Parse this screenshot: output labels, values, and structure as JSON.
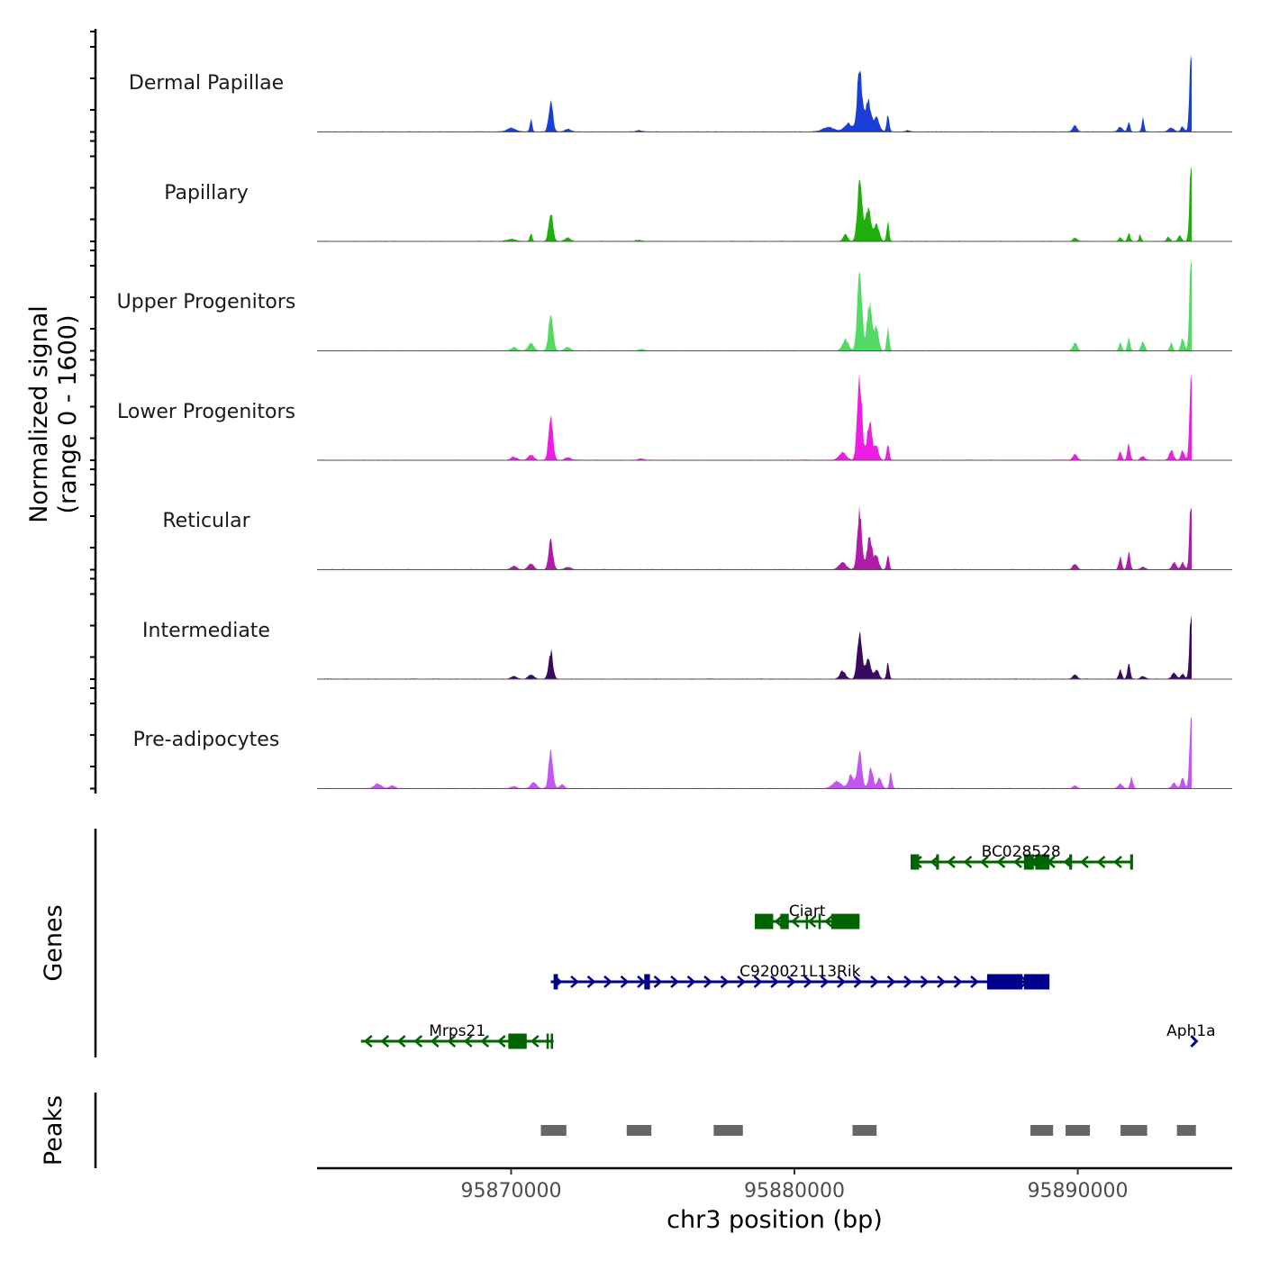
{
  "chart_data": {
    "type": "area",
    "title": "",
    "xlabel": "chr3 position (bp)",
    "ylabel": "Normalized signal\n(range 0 - 1600)",
    "ylabel_lines": [
      "Normalized signal",
      "(range 0 - 1600)"
    ],
    "ylim": [
      0,
      1600
    ],
    "xlim": [
      95863150,
      95895450
    ],
    "x_ticks": [
      95870000,
      95880000,
      95890000
    ],
    "x_tick_labels": [
      "95870000",
      "95880000",
      "95890000"
    ],
    "grid": false,
    "legend": "none",
    "series": [
      {
        "name": "Dermal Papillae",
        "color": "#1a3fd9",
        "peaks": [
          [
            95870000,
            60,
            300
          ],
          [
            95870700,
            200,
            80
          ],
          [
            95871400,
            480,
            150
          ],
          [
            95872000,
            40,
            200
          ],
          [
            95874500,
            20,
            200
          ],
          [
            95881200,
            70,
            400
          ],
          [
            95881900,
            120,
            300
          ],
          [
            95882300,
            1000,
            160
          ],
          [
            95882600,
            500,
            200
          ],
          [
            95882900,
            200,
            200
          ],
          [
            95883300,
            260,
            90
          ],
          [
            95884000,
            20,
            150
          ],
          [
            95889900,
            100,
            150
          ],
          [
            95891500,
            80,
            150
          ],
          [
            95891800,
            150,
            90
          ],
          [
            95892300,
            230,
            80
          ],
          [
            95893300,
            60,
            200
          ],
          [
            95893700,
            80,
            120
          ],
          [
            95894000,
            1200,
            110
          ]
        ]
      },
      {
        "name": "Papillary",
        "color": "#1faf0a",
        "peaks": [
          [
            95870000,
            30,
            300
          ],
          [
            95870700,
            120,
            80
          ],
          [
            95871400,
            450,
            150
          ],
          [
            95872000,
            50,
            200
          ],
          [
            95874500,
            15,
            200
          ],
          [
            95881800,
            110,
            150
          ],
          [
            95882300,
            970,
            160
          ],
          [
            95882600,
            500,
            200
          ],
          [
            95882900,
            250,
            180
          ],
          [
            95883300,
            280,
            90
          ],
          [
            95889900,
            50,
            150
          ],
          [
            95891500,
            60,
            100
          ],
          [
            95891800,
            130,
            90
          ],
          [
            95892200,
            100,
            80
          ],
          [
            95893200,
            60,
            120
          ],
          [
            95893600,
            100,
            120
          ],
          [
            95894000,
            1200,
            110
          ]
        ]
      },
      {
        "name": "Upper Progenitors",
        "color": "#55d966",
        "peaks": [
          [
            95870100,
            50,
            200
          ],
          [
            95870700,
            110,
            200
          ],
          [
            95871400,
            620,
            150
          ],
          [
            95872000,
            50,
            200
          ],
          [
            95874600,
            20,
            200
          ],
          [
            95881800,
            180,
            200
          ],
          [
            95882300,
            1300,
            160
          ],
          [
            95882650,
            700,
            180
          ],
          [
            95882900,
            350,
            150
          ],
          [
            95883300,
            330,
            90
          ],
          [
            95889900,
            120,
            150
          ],
          [
            95891500,
            120,
            100
          ],
          [
            95891800,
            180,
            100
          ],
          [
            95892300,
            140,
            120
          ],
          [
            95893300,
            120,
            100
          ],
          [
            95893700,
            200,
            120
          ],
          [
            95894000,
            1540,
            110
          ]
        ]
      },
      {
        "name": "Lower Progenitors",
        "color": "#ee1de4",
        "peaks": [
          [
            95870100,
            50,
            200
          ],
          [
            95870700,
            80,
            200
          ],
          [
            95871400,
            700,
            150
          ],
          [
            95872000,
            40,
            200
          ],
          [
            95874600,
            20,
            200
          ],
          [
            95881700,
            120,
            250
          ],
          [
            95882300,
            1320,
            160
          ],
          [
            95882650,
            600,
            180
          ],
          [
            95882900,
            200,
            150
          ],
          [
            95883300,
            260,
            90
          ],
          [
            95889900,
            90,
            150
          ],
          [
            95891500,
            130,
            100
          ],
          [
            95891800,
            240,
            100
          ],
          [
            95892300,
            60,
            150
          ],
          [
            95893300,
            150,
            150
          ],
          [
            95893700,
            150,
            120
          ],
          [
            95894000,
            1350,
            110
          ]
        ]
      },
      {
        "name": "Reticular",
        "color": "#b01aa9",
        "peaks": [
          [
            95870100,
            50,
            200
          ],
          [
            95870700,
            90,
            200
          ],
          [
            95871400,
            480,
            150
          ],
          [
            95872000,
            40,
            200
          ],
          [
            95881700,
            110,
            250
          ],
          [
            95882300,
            900,
            160
          ],
          [
            95882650,
            500,
            180
          ],
          [
            95882900,
            200,
            150
          ],
          [
            95883300,
            220,
            90
          ],
          [
            95889900,
            90,
            150
          ],
          [
            95891500,
            190,
            100
          ],
          [
            95891800,
            260,
            100
          ],
          [
            95892300,
            40,
            150
          ],
          [
            95893400,
            110,
            150
          ],
          [
            95893700,
            110,
            120
          ],
          [
            95894000,
            1100,
            110
          ]
        ]
      },
      {
        "name": "Intermediate",
        "color": "#3a0a63",
        "peaks": [
          [
            95870100,
            40,
            200
          ],
          [
            95870700,
            60,
            200
          ],
          [
            95871400,
            420,
            150
          ],
          [
            95881700,
            120,
            200
          ],
          [
            95882300,
            780,
            160
          ],
          [
            95882600,
            350,
            180
          ],
          [
            95882900,
            150,
            150
          ],
          [
            95883300,
            250,
            90
          ],
          [
            95889900,
            70,
            150
          ],
          [
            95891500,
            150,
            100
          ],
          [
            95891800,
            230,
            100
          ],
          [
            95892300,
            40,
            150
          ],
          [
            95893400,
            100,
            150
          ],
          [
            95893700,
            80,
            120
          ],
          [
            95894000,
            1050,
            110
          ]
        ]
      },
      {
        "name": "Pre-adipocytes",
        "color": "#c356f2",
        "peaks": [
          [
            95865300,
            70,
            250
          ],
          [
            95865800,
            40,
            200
          ],
          [
            95870100,
            30,
            200
          ],
          [
            95870800,
            100,
            200
          ],
          [
            95871400,
            580,
            150
          ],
          [
            95871800,
            60,
            150
          ],
          [
            95881500,
            110,
            300
          ],
          [
            95882000,
            200,
            200
          ],
          [
            95882300,
            560,
            160
          ],
          [
            95882700,
            330,
            150
          ],
          [
            95883000,
            180,
            150
          ],
          [
            95883400,
            230,
            90
          ],
          [
            95889900,
            40,
            150
          ],
          [
            95891500,
            70,
            150
          ],
          [
            95891900,
            170,
            100
          ],
          [
            95893400,
            80,
            150
          ],
          [
            95893700,
            180,
            120
          ],
          [
            95894000,
            1040,
            110
          ]
        ]
      }
    ],
    "genes_track": {
      "label": "Genes",
      "genes": [
        {
          "name": "BC028528",
          "strand": "-",
          "color": "#006400",
          "start": 95884100,
          "end": 95891900,
          "row": 0,
          "exons": [
            [
              95884100,
              95884400
            ],
            [
              95885000,
              95885100
            ],
            [
              95888100,
              95888450
            ],
            [
              95888500,
              95889000
            ],
            [
              95889700,
              95889800
            ],
            [
              95891850,
              95891950
            ]
          ]
        },
        {
          "name": "Ciart",
          "strand": "-",
          "color": "#006400",
          "start": 95878600,
          "end": 95882300,
          "row": 1,
          "exons": [
            [
              95878600,
              95879250
            ],
            [
              95879500,
              95879800
            ],
            [
              95880400,
              95880480
            ],
            [
              95880850,
              95880930
            ],
            [
              95881300,
              95882300
            ]
          ]
        },
        {
          "name": "C920021L13Rik",
          "strand": "+",
          "color": "#00008b",
          "start": 95871400,
          "end": 95889000,
          "row": 2,
          "exons": [
            [
              95871500,
              95871650
            ],
            [
              95874700,
              95874900
            ],
            [
              95886800,
              95888050
            ],
            [
              95888100,
              95889000
            ]
          ]
        },
        {
          "name": "Mrps21",
          "strand": "-",
          "color": "#006400",
          "start": 95864700,
          "end": 95871500,
          "row": 3,
          "exons": [
            [
              95869900,
              95870550
            ],
            [
              95871250,
              95871300
            ],
            [
              95871400,
              95871450
            ]
          ]
        },
        {
          "name": "Aph1a",
          "strand": "+",
          "color": "#00008b",
          "start": 95894000,
          "end": 95894200,
          "row": 3,
          "exons": []
        }
      ]
    },
    "peaks_track": {
      "label": "Peaks",
      "color": "#666666",
      "regions": [
        [
          95871050,
          95871950
        ],
        [
          95874080,
          95874950
        ],
        [
          95877150,
          95878180
        ],
        [
          95882050,
          95882900
        ],
        [
          95888330,
          95889130
        ],
        [
          95889570,
          95890430
        ],
        [
          95891510,
          95892450
        ],
        [
          95893500,
          95894170
        ]
      ]
    }
  }
}
